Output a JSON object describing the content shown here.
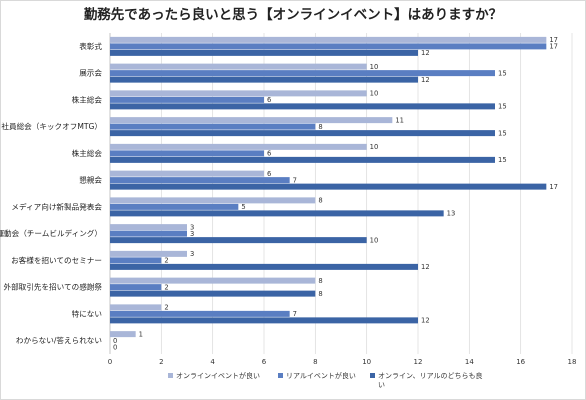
{
  "chart_data": {
    "type": "bar",
    "orientation": "horizontal",
    "title": "勤務先であったら良いと思う【オンラインイベント】はありますか？",
    "categories": [
      "表彰式",
      "展示会",
      "株主総会",
      "社員総会（キックオフMTG）",
      "株主総会",
      "懇親会",
      "メディア向け新製品発表会",
      "運動会（チームビルディング）",
      "お客様を招いてのセミナー",
      "外部取引先を招いての感謝祭",
      "特にない",
      "わからない/答えられない"
    ],
    "series": [
      {
        "name": "オンラインイベントが良い",
        "color": "#a9b6d8",
        "values": [
          17,
          10,
          10,
          11,
          10,
          6,
          8,
          3,
          3,
          8,
          2,
          1
        ]
      },
      {
        "name": "リアルイベントが良い",
        "color": "#5a7ec2",
        "values": [
          17,
          15,
          6,
          8,
          6,
          7,
          5,
          3,
          2,
          2,
          7,
          0
        ]
      },
      {
        "name": "オンライン、リアルのどちらも良い",
        "color": "#3b64a5",
        "values": [
          12,
          12,
          15,
          15,
          15,
          17,
          13,
          10,
          12,
          8,
          12,
          0
        ]
      }
    ],
    "xlim": [
      0,
      18
    ],
    "xticks": [
      "0",
      "2",
      "4",
      "6",
      "8",
      "10",
      "12",
      "14",
      "16",
      "18"
    ],
    "grid": true,
    "legend": "bottom"
  }
}
